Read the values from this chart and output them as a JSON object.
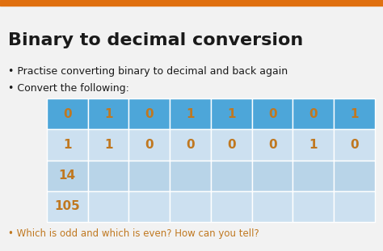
{
  "title": "Binary to decimal conversion",
  "bullet1": "• Practise converting binary to decimal and back again",
  "bullet2": "• Convert the following:",
  "bullet3": "• Which is odd and which is even? How can you tell?",
  "row1": [
    "0",
    "1",
    "0",
    "1",
    "1",
    "0",
    "0",
    "1"
  ],
  "row2": [
    "1",
    "1",
    "0",
    "0",
    "0",
    "0",
    "1",
    "0"
  ],
  "row3": [
    "14",
    "",
    "",
    "",
    "",
    "",
    "",
    ""
  ],
  "row4": [
    "105",
    "",
    "",
    "",
    "",
    "",
    "",
    ""
  ],
  "bg_color": "#f2f2f2",
  "header_row_color": "#4da6d9",
  "light_row_color_dark": "#b8d4e8",
  "light_row_color_light": "#cce0f0",
  "cell_text_color": "#c07820",
  "title_color": "#1a1a1a",
  "bullet_color": "#1a1a1a",
  "bullet3_color": "#c07820",
  "top_bar_color": "#e07010",
  "fig_w": 4.74,
  "fig_h": 3.11,
  "dpi": 100
}
